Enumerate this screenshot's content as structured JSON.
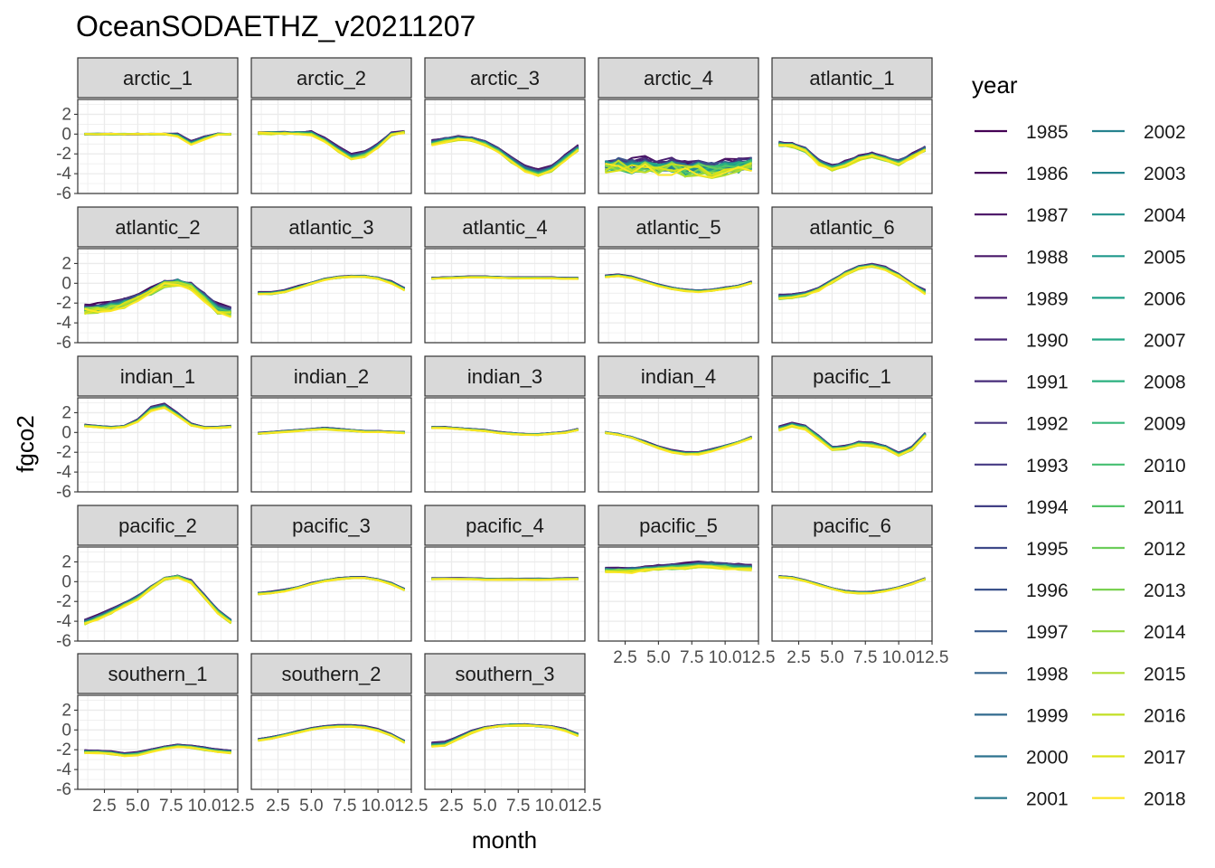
{
  "chart_data": {
    "type": "line",
    "title": "OceanSODAETHZ_v20211207",
    "xlabel": "month",
    "ylabel": "fgco2",
    "xlim": [
      0.5,
      12.5
    ],
    "ylim": [
      -6,
      3.5
    ],
    "x_ticks": [
      2.5,
      5.0,
      7.5,
      10.0,
      12.5
    ],
    "x_tick_labels": [
      "2.5",
      "5.0",
      "7.5",
      "10.0",
      "12.5"
    ],
    "y_ticks": [
      2,
      0,
      -2,
      -4,
      -6
    ],
    "y_tick_labels": [
      "2",
      "0",
      "-2",
      "-4",
      "-6"
    ],
    "grid": true,
    "legend": {
      "title": "year",
      "placement": "right",
      "entries": [
        {
          "label": "1985",
          "color": "#440154"
        },
        {
          "label": "1986",
          "color": "#46085c"
        },
        {
          "label": "1987",
          "color": "#471063"
        },
        {
          "label": "1988",
          "color": "#481769"
        },
        {
          "label": "1989",
          "color": "#481d6f"
        },
        {
          "label": "1990",
          "color": "#482475"
        },
        {
          "label": "1991",
          "color": "#472c7a"
        },
        {
          "label": "1992",
          "color": "#46337e"
        },
        {
          "label": "1993",
          "color": "#443983"
        },
        {
          "label": "1994",
          "color": "#424086"
        },
        {
          "label": "1995",
          "color": "#3e4989"
        },
        {
          "label": "1996",
          "color": "#3b528b"
        },
        {
          "label": "1997",
          "color": "#375a8c"
        },
        {
          "label": "1998",
          "color": "#33638d"
        },
        {
          "label": "1999",
          "color": "#306a8e"
        },
        {
          "label": "2000",
          "color": "#2c728e"
        },
        {
          "label": "2001",
          "color": "#297a8e"
        },
        {
          "label": "2002",
          "color": "#26828e"
        },
        {
          "label": "2003",
          "color": "#24868e"
        },
        {
          "label": "2004",
          "color": "#21918c"
        },
        {
          "label": "2005",
          "color": "#1f988b"
        },
        {
          "label": "2006",
          "color": "#1fa088"
        },
        {
          "label": "2007",
          "color": "#22a884"
        },
        {
          "label": "2008",
          "color": "#2ab07f"
        },
        {
          "label": "2009",
          "color": "#35b779"
        },
        {
          "label": "2010",
          "color": "#44bf70"
        },
        {
          "label": "2011",
          "color": "#54c568"
        },
        {
          "label": "2012",
          "color": "#6ccd5a"
        },
        {
          "label": "2013",
          "color": "#7ad151"
        },
        {
          "label": "2014",
          "color": "#95d840"
        },
        {
          "label": "2015",
          "color": "#b0dd2f"
        },
        {
          "label": "2016",
          "color": "#c2df23"
        },
        {
          "label": "2017",
          "color": "#dde318"
        },
        {
          "label": "2018",
          "color": "#fde725"
        }
      ]
    },
    "months": [
      1,
      2,
      3,
      4,
      5,
      6,
      7,
      8,
      9,
      10,
      11,
      12
    ],
    "panels": [
      {
        "name": "arctic_1",
        "mean": [
          0,
          0,
          0,
          0,
          0,
          0,
          0,
          -0.1,
          -0.9,
          -0.4,
          0,
          0
        ],
        "spread": [
          0,
          0,
          0,
          0,
          0,
          0,
          0,
          0.3,
          0.4,
          0.3,
          0.1,
          0
        ],
        "noise": 0.05
      },
      {
        "name": "arctic_2",
        "mean": [
          0.1,
          0.1,
          0.1,
          0.1,
          0.1,
          -0.6,
          -1.5,
          -2.3,
          -2.0,
          -1.2,
          0,
          0.2
        ],
        "spread": [
          0,
          0.1,
          0.1,
          0.1,
          0.3,
          0.4,
          0.5,
          0.6,
          0.5,
          0.4,
          0.2,
          0.1
        ],
        "noise": 0.1
      },
      {
        "name": "arctic_3",
        "mean": [
          -0.9,
          -0.6,
          -0.4,
          -0.5,
          -0.9,
          -1.6,
          -2.6,
          -3.5,
          -3.9,
          -3.5,
          -2.4,
          -1.4
        ],
        "spread": [
          0.5,
          0.4,
          0.3,
          0.3,
          0.4,
          0.4,
          0.5,
          0.6,
          0.6,
          0.5,
          0.5,
          0.5
        ],
        "noise": 0.1
      },
      {
        "name": "arctic_4",
        "mean": [
          -3.2,
          -3.0,
          -3.3,
          -3.1,
          -3.4,
          -3.2,
          -3.5,
          -3.3,
          -3.6,
          -3.4,
          -3.2,
          -3.0
        ],
        "spread": [
          0.6,
          0.6,
          0.7,
          0.7,
          0.7,
          0.7,
          0.7,
          0.7,
          0.7,
          0.7,
          0.6,
          0.6
        ],
        "noise": 0.6
      },
      {
        "name": "atlantic_1",
        "mean": [
          -1.0,
          -1.1,
          -1.6,
          -2.8,
          -3.4,
          -3.0,
          -2.4,
          -2.1,
          -2.5,
          -2.9,
          -2.2,
          -1.5
        ],
        "spread": [
          0.3,
          0.3,
          0.3,
          0.4,
          0.4,
          0.4,
          0.3,
          0.3,
          0.3,
          0.4,
          0.3,
          0.3
        ],
        "noise": 0.15
      },
      {
        "name": "atlantic_2",
        "mean": [
          -2.6,
          -2.5,
          -2.3,
          -2.0,
          -1.5,
          -0.8,
          -0.1,
          0.1,
          -0.3,
          -1.4,
          -2.6,
          -2.9
        ],
        "spread": [
          0.5,
          0.6,
          0.6,
          0.5,
          0.4,
          0.3,
          0.2,
          0.2,
          0.3,
          0.5,
          0.7,
          0.6
        ],
        "noise": 0.3
      },
      {
        "name": "atlantic_3",
        "mean": [
          -1.0,
          -1.0,
          -0.8,
          -0.4,
          0.0,
          0.4,
          0.6,
          0.7,
          0.7,
          0.5,
          0.1,
          -0.6
        ],
        "spread": [
          0.2,
          0.2,
          0.2,
          0.2,
          0.1,
          0.1,
          0.1,
          0.1,
          0.1,
          0.1,
          0.2,
          0.2
        ],
        "noise": 0.05
      },
      {
        "name": "atlantic_4",
        "mean": [
          0.5,
          0.55,
          0.6,
          0.65,
          0.65,
          0.6,
          0.55,
          0.55,
          0.55,
          0.55,
          0.5,
          0.5
        ],
        "spread": [
          0.1,
          0.1,
          0.1,
          0.1,
          0.1,
          0.1,
          0.1,
          0.1,
          0.1,
          0.1,
          0.1,
          0.1
        ],
        "noise": 0.03
      },
      {
        "name": "atlantic_5",
        "mean": [
          0.7,
          0.8,
          0.6,
          0.2,
          -0.2,
          -0.5,
          -0.7,
          -0.8,
          -0.7,
          -0.5,
          -0.3,
          0.1
        ],
        "spread": [
          0.15,
          0.15,
          0.15,
          0.15,
          0.15,
          0.15,
          0.15,
          0.15,
          0.15,
          0.15,
          0.15,
          0.15
        ],
        "noise": 0.04
      },
      {
        "name": "atlantic_6",
        "mean": [
          -1.4,
          -1.3,
          -1.1,
          -0.6,
          0.2,
          1.0,
          1.6,
          1.8,
          1.5,
          0.8,
          -0.1,
          -0.9
        ],
        "spread": [
          0.4,
          0.4,
          0.3,
          0.2,
          0.2,
          0.2,
          0.2,
          0.2,
          0.2,
          0.2,
          0.2,
          0.3
        ],
        "noise": 0.1
      },
      {
        "name": "indian_1",
        "mean": [
          0.7,
          0.6,
          0.5,
          0.6,
          1.2,
          2.4,
          2.7,
          1.8,
          0.8,
          0.5,
          0.5,
          0.6
        ],
        "spread": [
          0.1,
          0.1,
          0.1,
          0.1,
          0.2,
          0.4,
          0.4,
          0.3,
          0.2,
          0.1,
          0.1,
          0.1
        ],
        "noise": 0.05
      },
      {
        "name": "indian_2",
        "mean": [
          -0.1,
          0.0,
          0.1,
          0.2,
          0.3,
          0.4,
          0.3,
          0.2,
          0.1,
          0.1,
          0.05,
          0.0
        ],
        "spread": [
          0.1,
          0.1,
          0.1,
          0.1,
          0.1,
          0.15,
          0.15,
          0.1,
          0.1,
          0.1,
          0.1,
          0.1
        ],
        "noise": 0.04
      },
      {
        "name": "indian_3",
        "mean": [
          0.5,
          0.5,
          0.4,
          0.3,
          0.2,
          0.0,
          -0.1,
          -0.2,
          -0.2,
          -0.1,
          0.0,
          0.3
        ],
        "spread": [
          0.1,
          0.1,
          0.1,
          0.1,
          0.1,
          0.1,
          0.1,
          0.1,
          0.1,
          0.1,
          0.1,
          0.1
        ],
        "noise": 0.04
      },
      {
        "name": "indian_4",
        "mean": [
          0.0,
          -0.2,
          -0.5,
          -1.0,
          -1.5,
          -1.9,
          -2.1,
          -2.1,
          -1.8,
          -1.4,
          -1.0,
          -0.5
        ],
        "spread": [
          0.1,
          0.1,
          0.1,
          0.15,
          0.15,
          0.2,
          0.2,
          0.2,
          0.2,
          0.15,
          0.1,
          0.1
        ],
        "noise": 0.05
      },
      {
        "name": "pacific_1",
        "mean": [
          0.4,
          0.8,
          0.5,
          -0.5,
          -1.6,
          -1.5,
          -1.1,
          -1.2,
          -1.5,
          -2.2,
          -1.6,
          -0.2
        ],
        "spread": [
          0.3,
          0.3,
          0.3,
          0.3,
          0.3,
          0.3,
          0.3,
          0.3,
          0.3,
          0.3,
          0.3,
          0.3
        ],
        "noise": 0.1
      },
      {
        "name": "pacific_2",
        "mean": [
          -4.1,
          -3.6,
          -3.0,
          -2.3,
          -1.6,
          -0.6,
          0.3,
          0.5,
          0.0,
          -1.5,
          -3.0,
          -4.0
        ],
        "spread": [
          0.4,
          0.4,
          0.4,
          0.3,
          0.3,
          0.2,
          0.1,
          0.1,
          0.2,
          0.3,
          0.3,
          0.4
        ],
        "noise": 0.1
      },
      {
        "name": "pacific_3",
        "mean": [
          -1.2,
          -1.1,
          -0.9,
          -0.6,
          -0.2,
          0.1,
          0.3,
          0.4,
          0.4,
          0.2,
          -0.2,
          -0.8
        ],
        "spread": [
          0.15,
          0.15,
          0.15,
          0.1,
          0.1,
          0.1,
          0.1,
          0.1,
          0.1,
          0.1,
          0.15,
          0.15
        ],
        "noise": 0.04
      },
      {
        "name": "pacific_4",
        "mean": [
          0.3,
          0.3,
          0.3,
          0.3,
          0.25,
          0.25,
          0.25,
          0.25,
          0.25,
          0.25,
          0.3,
          0.3
        ],
        "spread": [
          0.1,
          0.1,
          0.1,
          0.1,
          0.1,
          0.1,
          0.1,
          0.1,
          0.1,
          0.1,
          0.1,
          0.1
        ],
        "noise": 0.03
      },
      {
        "name": "pacific_5",
        "mean": [
          1.2,
          1.2,
          1.2,
          1.3,
          1.4,
          1.5,
          1.6,
          1.7,
          1.7,
          1.6,
          1.5,
          1.4
        ],
        "spread": [
          0.4,
          0.4,
          0.4,
          0.4,
          0.4,
          0.45,
          0.45,
          0.5,
          0.5,
          0.45,
          0.45,
          0.45
        ],
        "noise": 0.15
      },
      {
        "name": "pacific_6",
        "mean": [
          0.5,
          0.4,
          0.1,
          -0.3,
          -0.7,
          -1.0,
          -1.1,
          -1.1,
          -0.9,
          -0.6,
          -0.2,
          0.3
        ],
        "spread": [
          0.1,
          0.1,
          0.1,
          0.1,
          0.1,
          0.15,
          0.15,
          0.15,
          0.1,
          0.1,
          0.1,
          0.1
        ],
        "noise": 0.04
      },
      {
        "name": "southern_1",
        "mean": [
          -2.2,
          -2.2,
          -2.3,
          -2.5,
          -2.4,
          -2.1,
          -1.8,
          -1.6,
          -1.7,
          -1.9,
          -2.1,
          -2.2
        ],
        "spread": [
          0.25,
          0.25,
          0.25,
          0.25,
          0.25,
          0.2,
          0.2,
          0.2,
          0.2,
          0.25,
          0.25,
          0.25
        ],
        "noise": 0.06
      },
      {
        "name": "southern_2",
        "mean": [
          -1.0,
          -0.8,
          -0.5,
          -0.2,
          0.1,
          0.3,
          0.4,
          0.4,
          0.3,
          0.0,
          -0.5,
          -1.2
        ],
        "spread": [
          0.15,
          0.15,
          0.15,
          0.15,
          0.15,
          0.15,
          0.15,
          0.15,
          0.15,
          0.15,
          0.15,
          0.2
        ],
        "noise": 0.04
      },
      {
        "name": "southern_3",
        "mean": [
          -1.5,
          -1.4,
          -0.8,
          -0.2,
          0.2,
          0.4,
          0.5,
          0.5,
          0.4,
          0.3,
          0.0,
          -0.5
        ],
        "spread": [
          0.4,
          0.4,
          0.3,
          0.2,
          0.1,
          0.1,
          0.1,
          0.1,
          0.1,
          0.1,
          0.15,
          0.2
        ],
        "noise": 0.06
      }
    ]
  }
}
